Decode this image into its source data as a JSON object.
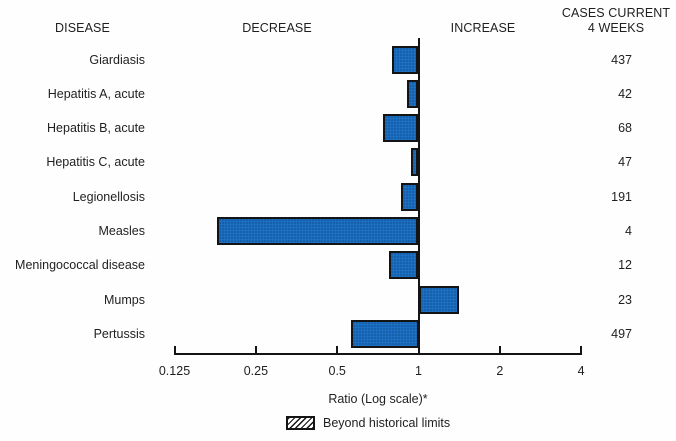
{
  "header": {
    "disease": "DISEASE",
    "decrease": "DECREASE",
    "increase": "INCREASE",
    "cases_line1": "CASES CURRENT",
    "cases_line2": "4 WEEKS"
  },
  "chart_data": {
    "type": "bar",
    "orientation": "horizontal",
    "scale": "log2",
    "baseline": 1,
    "xlabel": "Ratio (Log scale)*",
    "x_ticks": [
      0.125,
      0.25,
      0.5,
      1,
      2,
      4
    ],
    "x_tick_labels": [
      "0.125",
      "0.25",
      "0.5",
      "1",
      "2",
      "4"
    ],
    "xlim": [
      0.125,
      4
    ],
    "grid": false,
    "bar_color": "#1b70c4",
    "axis_color": "#141414",
    "rows": [
      {
        "disease": "Giardiasis",
        "ratio": 0.8,
        "cases": "437",
        "beyond_limits": false
      },
      {
        "disease": "Hepatitis A, acute",
        "ratio": 0.91,
        "cases": "42",
        "beyond_limits": false
      },
      {
        "disease": "Hepatitis B, acute",
        "ratio": 0.74,
        "cases": "68",
        "beyond_limits": false
      },
      {
        "disease": "Hepatitis C, acute",
        "ratio": 0.94,
        "cases": "47",
        "beyond_limits": false
      },
      {
        "disease": "Legionellosis",
        "ratio": 0.86,
        "cases": "191",
        "beyond_limits": false
      },
      {
        "disease": "Measles",
        "ratio": 0.18,
        "cases": "4",
        "beyond_limits": false
      },
      {
        "disease": "Meningococcal disease",
        "ratio": 0.78,
        "cases": "12",
        "beyond_limits": false
      },
      {
        "disease": "Mumps",
        "ratio": 1.41,
        "cases": "23",
        "beyond_limits": false
      },
      {
        "disease": "Pertussis",
        "ratio": 0.56,
        "cases": "497",
        "beyond_limits": false
      }
    ],
    "legend": {
      "label": "Beyond historical limits",
      "swatch": "hatched"
    }
  }
}
